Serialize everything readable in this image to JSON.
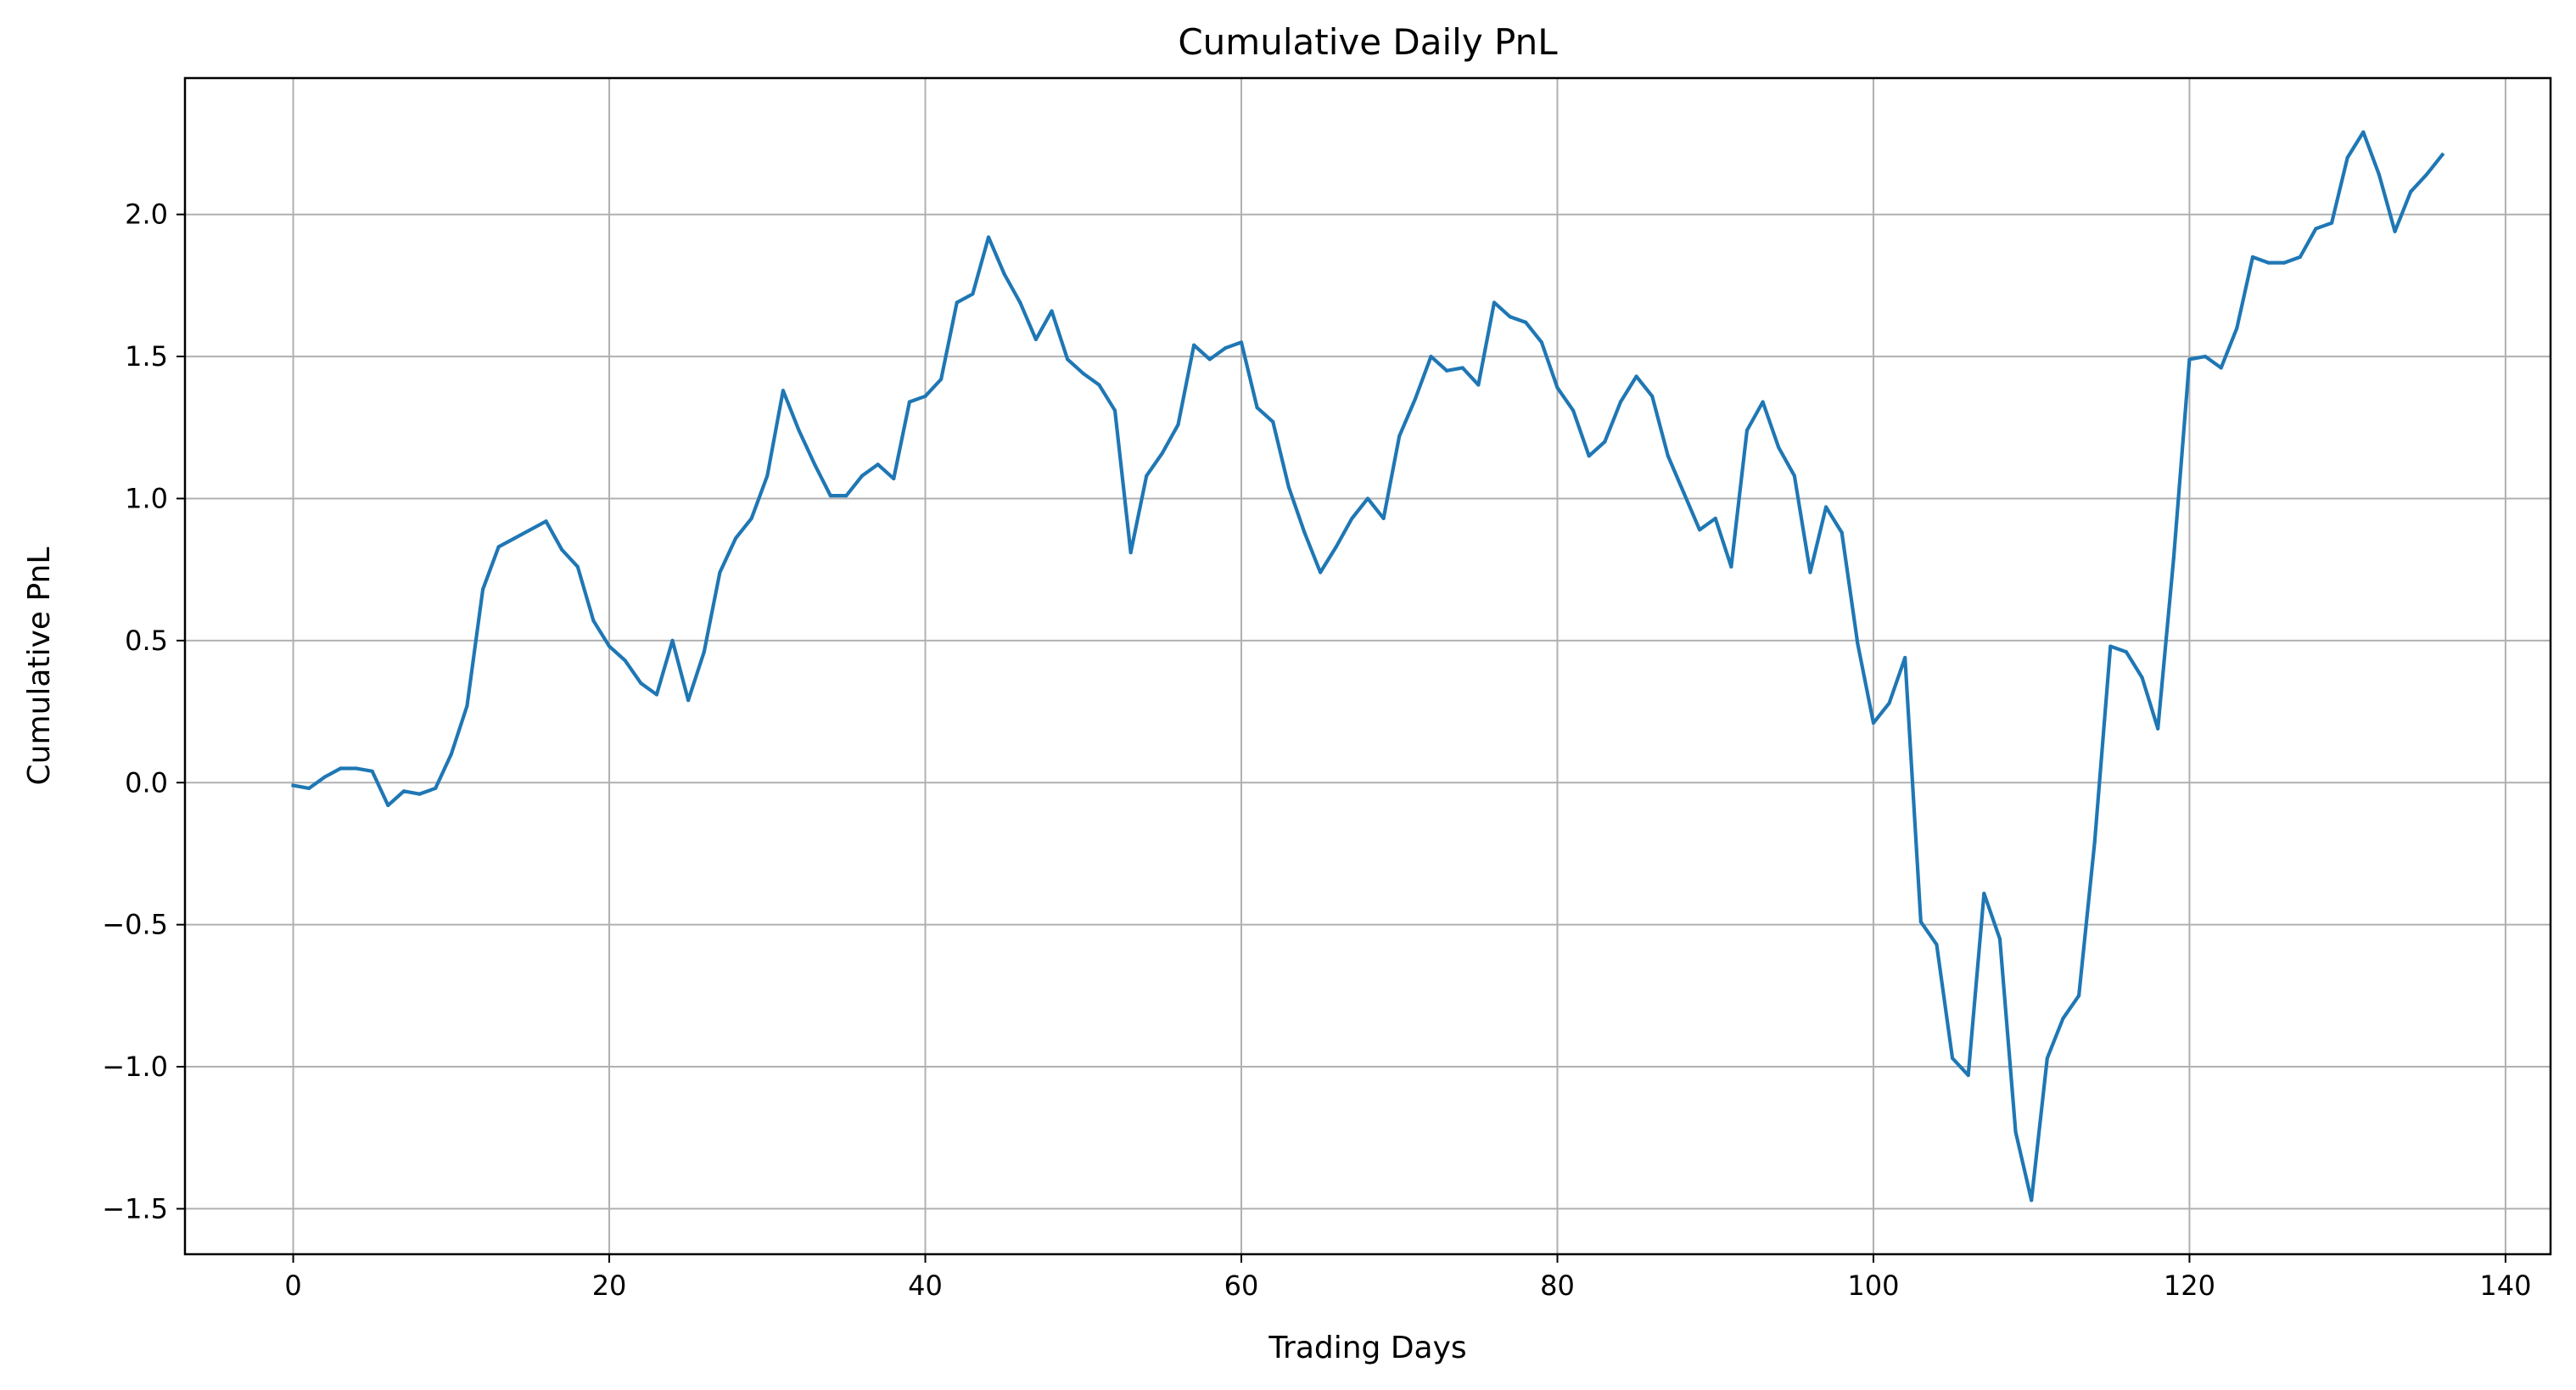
{
  "chart_data": {
    "type": "line",
    "title": "Cumulative Daily PnL",
    "xlabel": "Trading Days",
    "ylabel": "Cumulative PnL",
    "xlim": [
      -6.85,
      142.85
    ],
    "ylim": [
      -1.66,
      2.48
    ],
    "grid": true,
    "line_color": "#1f77b4",
    "x_ticks": [
      0,
      20,
      40,
      60,
      80,
      100,
      120,
      140
    ],
    "x_tick_labels": [
      "0",
      "20",
      "40",
      "60",
      "80",
      "100",
      "120",
      "140"
    ],
    "y_ticks": [
      -1.5,
      -1.0,
      -0.5,
      0.0,
      0.5,
      1.0,
      1.5,
      2.0
    ],
    "y_tick_labels": [
      "−1.5",
      "−1.0",
      "−0.5",
      "0.0",
      "0.5",
      "1.0",
      "1.5",
      "2.0"
    ],
    "series": [
      {
        "name": "Cumulative PnL",
        "x": [
          0,
          1,
          2,
          3,
          4,
          5,
          6,
          7,
          8,
          9,
          10,
          11,
          12,
          13,
          14,
          15,
          16,
          17,
          18,
          19,
          20,
          21,
          22,
          23,
          24,
          25,
          26,
          27,
          28,
          29,
          30,
          31,
          32,
          33,
          34,
          35,
          36,
          37,
          38,
          39,
          40,
          41,
          42,
          43,
          44,
          45,
          46,
          47,
          48,
          49,
          50,
          51,
          52,
          53,
          54,
          55,
          56,
          57,
          58,
          59,
          60,
          61,
          62,
          63,
          64,
          65,
          66,
          67,
          68,
          69,
          70,
          71,
          72,
          73,
          74,
          75,
          76,
          77,
          78,
          79,
          80,
          81,
          82,
          83,
          84,
          85,
          86,
          87,
          88,
          89,
          90,
          91,
          92,
          93,
          94,
          95,
          96,
          97,
          98,
          99,
          100,
          101,
          102,
          103,
          104,
          105,
          106,
          107,
          108,
          109,
          110,
          111,
          112,
          113,
          114,
          115,
          116,
          117,
          118,
          119,
          120,
          121,
          122,
          123,
          124,
          125,
          126,
          127,
          128,
          129,
          130,
          131,
          132,
          133,
          134,
          135,
          136
        ],
        "values": [
          -0.01,
          -0.02,
          0.02,
          0.05,
          0.05,
          0.04,
          -0.08,
          -0.03,
          -0.04,
          -0.02,
          0.1,
          0.27,
          0.68,
          0.83,
          0.86,
          0.89,
          0.92,
          0.82,
          0.76,
          0.57,
          0.48,
          0.43,
          0.35,
          0.31,
          0.5,
          0.29,
          0.46,
          0.74,
          0.86,
          0.93,
          1.08,
          1.38,
          1.24,
          1.12,
          1.01,
          1.01,
          1.08,
          1.12,
          1.07,
          1.34,
          1.36,
          1.42,
          1.69,
          1.72,
          1.92,
          1.79,
          1.69,
          1.56,
          1.66,
          1.49,
          1.44,
          1.4,
          1.31,
          0.81,
          1.08,
          1.16,
          1.26,
          1.54,
          1.49,
          1.53,
          1.55,
          1.32,
          1.27,
          1.04,
          0.88,
          0.74,
          0.83,
          0.93,
          1.0,
          0.93,
          1.22,
          1.35,
          1.5,
          1.45,
          1.46,
          1.4,
          1.69,
          1.64,
          1.62,
          1.55,
          1.39,
          1.31,
          1.15,
          1.2,
          1.34,
          1.43,
          1.36,
          1.15,
          1.02,
          0.89,
          0.93,
          0.76,
          1.24,
          1.34,
          1.18,
          1.08,
          0.74,
          0.97,
          0.88,
          0.49,
          0.21,
          0.28,
          0.44,
          -0.49,
          -0.57,
          -0.97,
          -1.03,
          -0.39,
          -0.55,
          -1.23,
          -1.47,
          -0.97,
          -0.83,
          -0.75,
          -0.21,
          0.48,
          0.46,
          0.37,
          0.19,
          0.79,
          1.49,
          1.5,
          1.46,
          1.6,
          1.85,
          1.83,
          1.83,
          1.85,
          1.95,
          1.97,
          2.2,
          2.29,
          2.14,
          1.94,
          2.08,
          2.14,
          2.21
        ]
      }
    ]
  }
}
